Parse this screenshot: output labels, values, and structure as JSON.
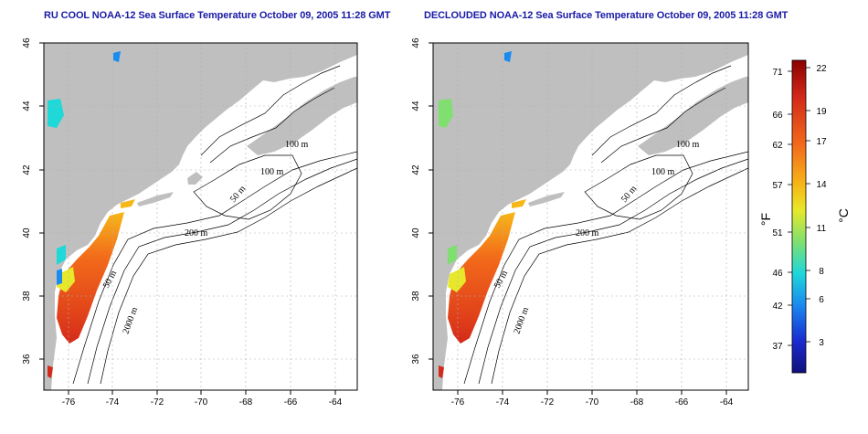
{
  "panels": [
    {
      "title": "RU COOL NOAA-12 Sea Surface Temperature October 09, 2005 11:28 GMT",
      "name": "left"
    },
    {
      "title": "DECLOUDED NOAA-12 Sea Surface Temperature October 09, 2005 11:28 GMT",
      "name": "right"
    }
  ],
  "axes": {
    "lon_ticks": [
      "-76",
      "-74",
      "-72",
      "-70",
      "-68",
      "-66",
      "-64"
    ],
    "lat_ticks": [
      "36",
      "38",
      "40",
      "42",
      "44",
      "46"
    ],
    "lon_range": [
      -77,
      -63
    ],
    "lat_range": [
      35,
      46
    ]
  },
  "contour_labels": [
    "100 m",
    "100 m",
    "50 m",
    "200 m",
    "50 m",
    "2000 m"
  ],
  "colorbar": {
    "f_label": "°F",
    "c_label": "°C",
    "f_ticks": [
      "71",
      "66",
      "62",
      "57",
      "51",
      "46",
      "42",
      "37"
    ],
    "c_ticks": [
      "22",
      "19",
      "17",
      "14",
      "11",
      "8",
      "6",
      "3"
    ],
    "colors": [
      "#8b0000",
      "#d42a1a",
      "#f26a1a",
      "#f7b718",
      "#e7e82a",
      "#7fe06f",
      "#1fd8d8",
      "#1a8cf0",
      "#1a2ad0",
      "#10107a"
    ]
  },
  "colors": {
    "land": "#bfbfbf",
    "title": "#1a1aa8",
    "grid": "#b0b0b0"
  }
}
